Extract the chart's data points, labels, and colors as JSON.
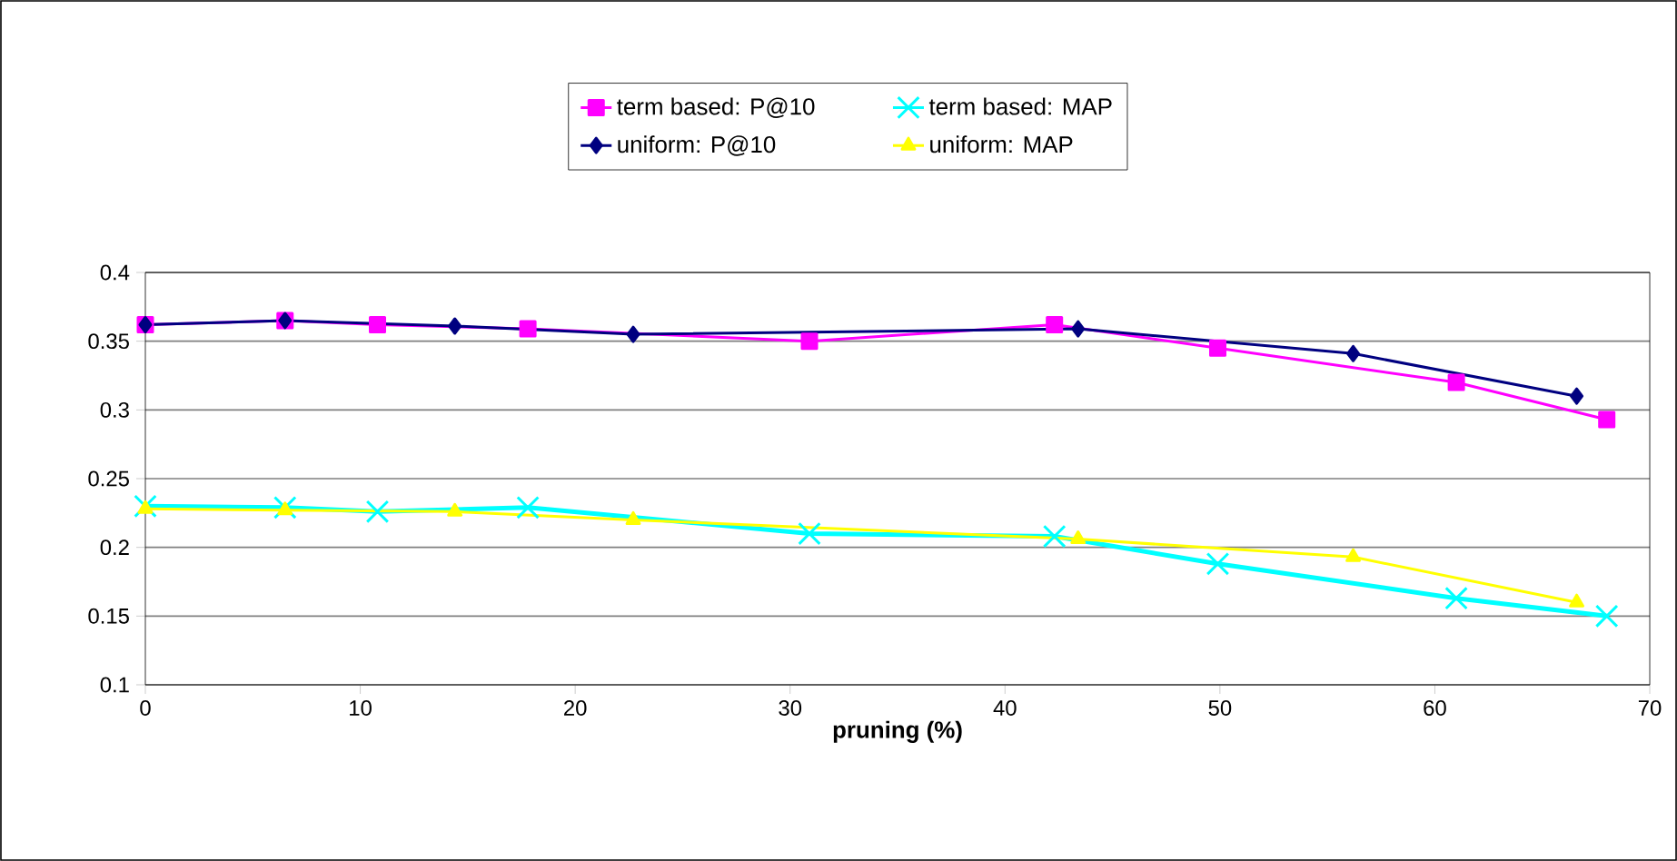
{
  "chart_data": {
    "type": "line",
    "xlabel": "pruning (%)",
    "xlim": [
      0,
      70
    ],
    "xticks": [
      0,
      10,
      20,
      30,
      40,
      50,
      60,
      70
    ],
    "ylim": [
      0.1,
      0.4
    ],
    "yticks": [
      0.1,
      0.15,
      0.2,
      0.25,
      0.3,
      0.35,
      0.4
    ],
    "grid": "y",
    "legend": "top",
    "line_style": "solid",
    "series": [
      {
        "name": "term based: P@10",
        "color": "#ff00ff",
        "marker": "square",
        "x": [
          0,
          6.5,
          10.8,
          17.8,
          30.9,
          42.3,
          49.9,
          61,
          68
        ],
        "values": [
          0.362,
          0.365,
          0.362,
          0.359,
          0.35,
          0.362,
          0.345,
          0.32,
          0.293
        ]
      },
      {
        "name": "term based: MAP",
        "color": "#00ffff",
        "marker": "cross",
        "x": [
          0,
          6.5,
          10.8,
          17.8,
          30.9,
          42.3,
          49.9,
          61,
          68
        ],
        "values": [
          0.23,
          0.229,
          0.226,
          0.229,
          0.21,
          0.208,
          0.188,
          0.163,
          0.15
        ]
      },
      {
        "name": "uniform: P@10",
        "color": "#000080",
        "marker": "diamond",
        "x": [
          0,
          6.5,
          14.4,
          22.7,
          43.4,
          56.2,
          66.6
        ],
        "values": [
          0.362,
          0.365,
          0.361,
          0.355,
          0.359,
          0.341,
          0.31
        ]
      },
      {
        "name": "uniform: MAP",
        "color": "#ffff00",
        "marker": "triangle",
        "x": [
          0,
          6.5,
          14.4,
          22.7,
          43.4,
          56.2,
          66.6
        ],
        "values": [
          0.228,
          0.227,
          0.226,
          0.22,
          0.206,
          0.193,
          0.16
        ]
      }
    ]
  }
}
